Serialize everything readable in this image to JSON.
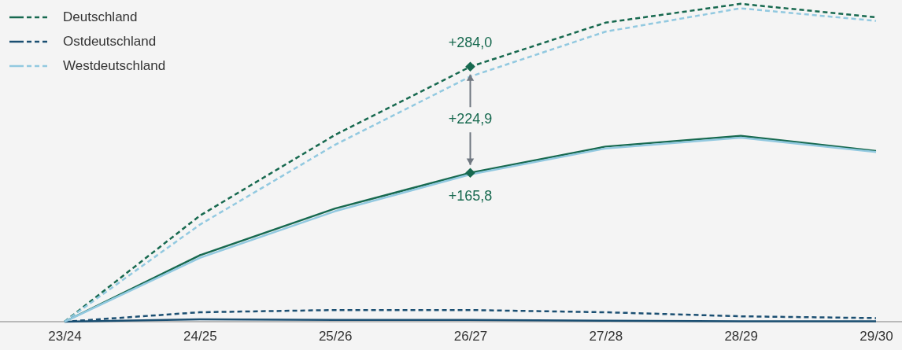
{
  "chart_data": {
    "type": "line",
    "categories": [
      "23/24",
      "24/25",
      "25/26",
      "26/27",
      "27/28",
      "28/29",
      "29/30"
    ],
    "legend": "top left",
    "grid": false,
    "tick_labels": "x",
    "series": [
      {
        "name": "Deutschland",
        "color": "#17694f",
        "line_style": "dashed",
        "values": [
          0,
          118,
          208,
          284.0,
          333,
          354,
          339
        ],
        "value_labels": [
          null,
          null,
          null,
          "+284,0",
          null,
          null,
          null
        ]
      },
      {
        "name": "Ostdeutschland",
        "color": "#1b4f72",
        "line_style": "dashed",
        "values": [
          0,
          10.5,
          13,
          13,
          10.5,
          6,
          4
        ]
      },
      {
        "name": "Westdeutschland",
        "color": "#92c9e0",
        "line_style": "dashed",
        "values": [
          0,
          108,
          197,
          273,
          323,
          349,
          335
        ]
      },
      {
        "color": "#17694f",
        "line_style": "solid",
        "values": [
          0,
          74,
          126,
          165.8,
          195,
          207,
          190
        ],
        "value_labels": [
          null,
          null,
          null,
          "+165,8",
          null,
          null,
          null
        ]
      },
      {
        "color": "#1b4f72",
        "line_style": "solid",
        "values": [
          0,
          2.6,
          2,
          2,
          1,
          0.5,
          0.5
        ]
      },
      {
        "color": "#92c9e0",
        "line_style": "solid",
        "values": [
          0,
          71,
          123,
          164,
          193,
          205,
          189
        ]
      }
    ],
    "annotations": [
      "+224,9"
    ]
  }
}
